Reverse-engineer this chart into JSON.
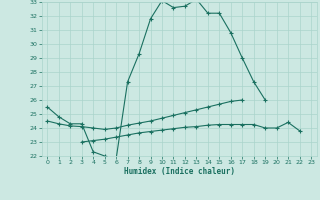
{
  "xlabel": "Humidex (Indice chaleur)",
  "color": "#1a7060",
  "bg_color": "#cce8e2",
  "grid_color": "#aad4cc",
  "ylim": [
    22,
    33
  ],
  "xlim": [
    -0.5,
    23.5
  ],
  "yticks": [
    22,
    23,
    24,
    25,
    26,
    27,
    28,
    29,
    30,
    31,
    32,
    33
  ],
  "xticks": [
    0,
    1,
    2,
    3,
    4,
    5,
    6,
    7,
    8,
    9,
    10,
    11,
    12,
    13,
    14,
    15,
    16,
    17,
    18,
    19,
    20,
    21,
    22,
    23
  ],
  "line_peak_x": [
    0,
    1,
    2,
    3,
    4,
    5,
    6,
    7,
    8,
    9,
    10,
    11,
    12,
    13,
    14,
    15,
    16,
    17,
    18,
    19
  ],
  "line_peak_y": [
    25.5,
    24.8,
    24.3,
    24.3,
    22.3,
    22.0,
    21.8,
    27.3,
    29.3,
    31.8,
    33.1,
    32.6,
    32.7,
    33.2,
    32.2,
    32.2,
    30.8,
    29.0,
    27.3,
    26.0
  ],
  "line_mid_x": [
    0,
    1,
    2,
    3,
    4,
    5,
    6,
    7,
    8,
    9,
    10,
    11,
    12,
    13,
    14,
    15,
    16,
    17
  ],
  "line_mid_y": [
    24.5,
    24.3,
    24.15,
    24.1,
    24.0,
    23.9,
    24.0,
    24.2,
    24.35,
    24.5,
    24.7,
    24.9,
    25.1,
    25.3,
    25.5,
    25.7,
    25.9,
    26.0
  ],
  "line_low_x": [
    3,
    4,
    5,
    6,
    7,
    8,
    9,
    10,
    11,
    12,
    13,
    14,
    15,
    16,
    17,
    18,
    19,
    20,
    21,
    22
  ],
  "line_low_y": [
    23.0,
    23.1,
    23.2,
    23.35,
    23.5,
    23.65,
    23.75,
    23.85,
    23.95,
    24.05,
    24.1,
    24.2,
    24.25,
    24.25,
    24.25,
    24.25,
    24.0,
    24.0,
    24.4,
    23.8
  ]
}
